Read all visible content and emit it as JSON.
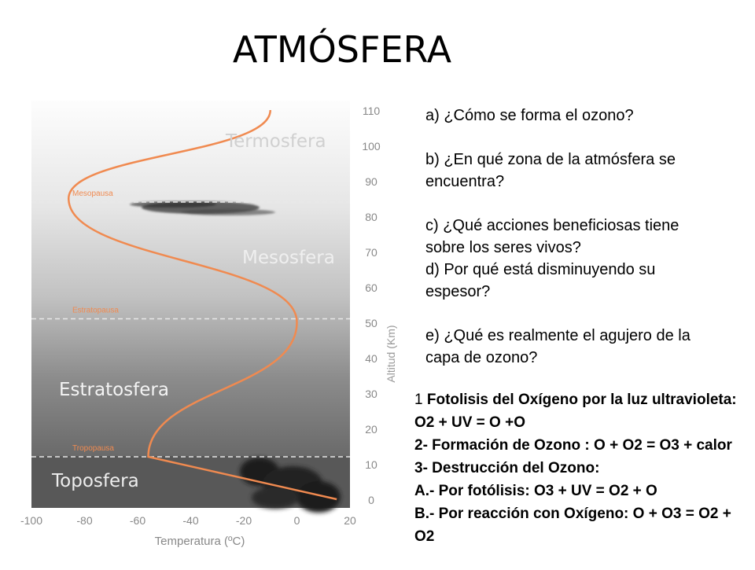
{
  "slide": {
    "title": "ATMÓSFERA"
  },
  "questions": [
    "a)   ¿Cómo se forma el ozono?",
    "b) ¿En qué zona de la atmósfera se encuentra?",
    "c) ¿Qué acciones beneficiosas tiene sobre los seres vivos?",
    "d) Por qué está disminuyendo su espesor?",
    "e) ¿Qué es realmente el agujero de la capa de ozono?"
  ],
  "answers": {
    "line1_num": "1 ",
    "line1_text": "Fotolisis del Oxígeno por la luz ultravioleta: O2 + UV = O +O",
    "line2": "2- Formación de Ozono : O + O2 = O3 + calor",
    "line3": "3- Destrucción del Ozono:",
    "line4": "A.- Por fotólisis: O3 + UV = O2 + O",
    "line5": "B.- Por reacción con Oxígeno: O + O3 = O2 + O2"
  },
  "chart_data": {
    "type": "line",
    "xlabel": "Temperatura (ºC)",
    "ylabel": "Altitud (Km)",
    "xlim": [
      -100,
      20
    ],
    "ylim": [
      0,
      110
    ],
    "xticks": [
      -100,
      -80,
      -60,
      -40,
      -20,
      0,
      20
    ],
    "yticks": [
      0,
      10,
      20,
      30,
      40,
      50,
      60,
      70,
      80,
      90,
      100,
      110
    ],
    "series": [
      {
        "x": [
          15,
          -56,
          0,
          -86,
          -10
        ],
        "y": [
          0,
          12,
          50,
          85,
          110
        ]
      }
    ],
    "layers": [
      "Toposfera",
      "Estratosfera",
      "Mesosfera",
      "Termosfera"
    ],
    "boundaries": [
      {
        "label": "Tropopausa",
        "altitude": 12
      },
      {
        "label": "Estratopausa",
        "altitude": 51
      },
      {
        "label": "Mesopausa",
        "altitude": 84
      }
    ],
    "colors": {
      "curve": "#f08a50",
      "boundary": "#e8e8e8"
    }
  }
}
